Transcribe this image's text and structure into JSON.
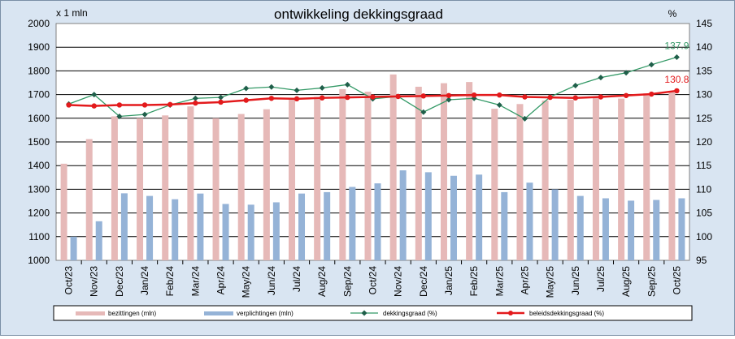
{
  "chart_data": {
    "type": "bar",
    "title": "ontwikkeling  dekkingsgraad",
    "y_left_unit": "x 1 mln",
    "y_right_unit": "%",
    "categories": [
      "Oct/23",
      "Nov/23",
      "Dec/23",
      "Jan/24",
      "Feb/24",
      "Mar/24",
      "Apr/24",
      "May/24",
      "Jun/24",
      "Jul/24",
      "Aug/24",
      "Sep/24",
      "Oct/24",
      "Nov/24",
      "Dec/24",
      "Jan/25",
      "Feb/25",
      "Mar/25",
      "Apr/25",
      "May/25",
      "Jun/25",
      "Jul/25",
      "Aug/25",
      "Sep/25",
      "Oct/25"
    ],
    "ylim_left": [
      1000,
      2000
    ],
    "ylim_right": [
      95,
      145
    ],
    "yticks_left": [
      "1000",
      "1100",
      "1200",
      "1300",
      "1400",
      "1500",
      "1600",
      "1700",
      "1800",
      "1900",
      "2000"
    ],
    "yticks_right": [
      "95",
      "100",
      "105",
      "110",
      "115",
      "120",
      "125",
      "130",
      "135",
      "140",
      "145"
    ],
    "grid": true,
    "legend_position": "bottom",
    "series": [
      {
        "name": "bezittingen (mln)",
        "kind": "bar",
        "axis": "left",
        "color": "#e6b9b8",
        "values": [
          1408,
          1512,
          1608,
          1600,
          1612,
          1650,
          1600,
          1618,
          1638,
          1678,
          1690,
          1723,
          1712,
          1785,
          1733,
          1748,
          1753,
          1640,
          1660,
          1675,
          1678,
          1690,
          1683,
          1705,
          1712
        ]
      },
      {
        "name": "verplichtingen (mln)",
        "kind": "bar",
        "axis": "left",
        "color": "#95b3d7",
        "values": [
          1100,
          1165,
          1283,
          1272,
          1258,
          1282,
          1238,
          1235,
          1245,
          1282,
          1288,
          1310,
          1325,
          1380,
          1372,
          1357,
          1362,
          1288,
          1328,
          1300,
          1272,
          1262,
          1252,
          1255,
          1262
        ]
      },
      {
        "name": "dekkingsgraad (%)",
        "kind": "line",
        "axis": "right",
        "color": "#339966",
        "values": [
          128.0,
          130.0,
          125.4,
          125.8,
          127.8,
          129.2,
          129.4,
          131.3,
          131.6,
          130.9,
          131.4,
          132.1,
          129.1,
          129.6,
          126.3,
          128.9,
          129.2,
          127.8,
          124.9,
          129.5,
          131.9,
          133.6,
          134.6,
          136.3,
          137.9
        ]
      },
      {
        "name": "beleidsdekkingsgraad (%)",
        "kind": "line",
        "axis": "right",
        "color": "#e31a1c",
        "values": [
          127.8,
          127.6,
          127.8,
          127.8,
          127.9,
          128.2,
          128.4,
          128.8,
          129.2,
          129.1,
          129.3,
          129.4,
          129.5,
          129.6,
          129.7,
          129.8,
          129.9,
          129.9,
          129.5,
          129.4,
          129.3,
          129.5,
          129.8,
          130.1,
          130.8
        ]
      }
    ],
    "annotations": [
      {
        "series": "dekkingsgraad (%)",
        "index": 24,
        "text": "137.9"
      },
      {
        "series": "beleidsdekkingsgraad (%)",
        "index": 24,
        "text": "130.8"
      }
    ]
  }
}
